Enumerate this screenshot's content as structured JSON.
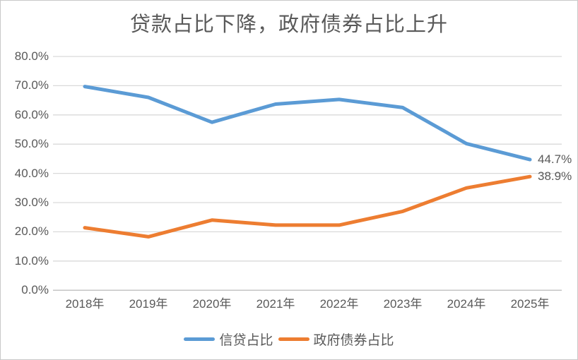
{
  "title": "贷款占比下降，政府债券占比上升",
  "chart_data": {
    "type": "line",
    "title": "贷款占比下降，政府债券占比上升",
    "categories": [
      "2018年",
      "2019年",
      "2020年",
      "2021年",
      "2022年",
      "2023年",
      "2024年",
      "2025年"
    ],
    "series": [
      {
        "name": "信贷占比",
        "color": "#5B9BD5",
        "values": [
          69.7,
          66.0,
          57.5,
          63.7,
          65.3,
          62.5,
          50.2,
          44.7
        ],
        "end_label": "44.7%"
      },
      {
        "name": "政府债券占比",
        "color": "#ED7D31",
        "values": [
          21.4,
          18.3,
          24.0,
          22.3,
          22.3,
          27.0,
          35.0,
          38.9
        ],
        "end_label": "38.9%"
      }
    ],
    "y_ticks": [
      "80.0%",
      "70.0%",
      "60.0%",
      "50.0%",
      "40.0%",
      "30.0%",
      "20.0%",
      "10.0%",
      "0.0%"
    ],
    "ylim": [
      0,
      80
    ],
    "xlabel": "",
    "ylabel": "",
    "grid": true,
    "gridline_color": "#D9D9D9",
    "axis_line_color": "#BFBFBF",
    "legend_position": "bottom"
  }
}
